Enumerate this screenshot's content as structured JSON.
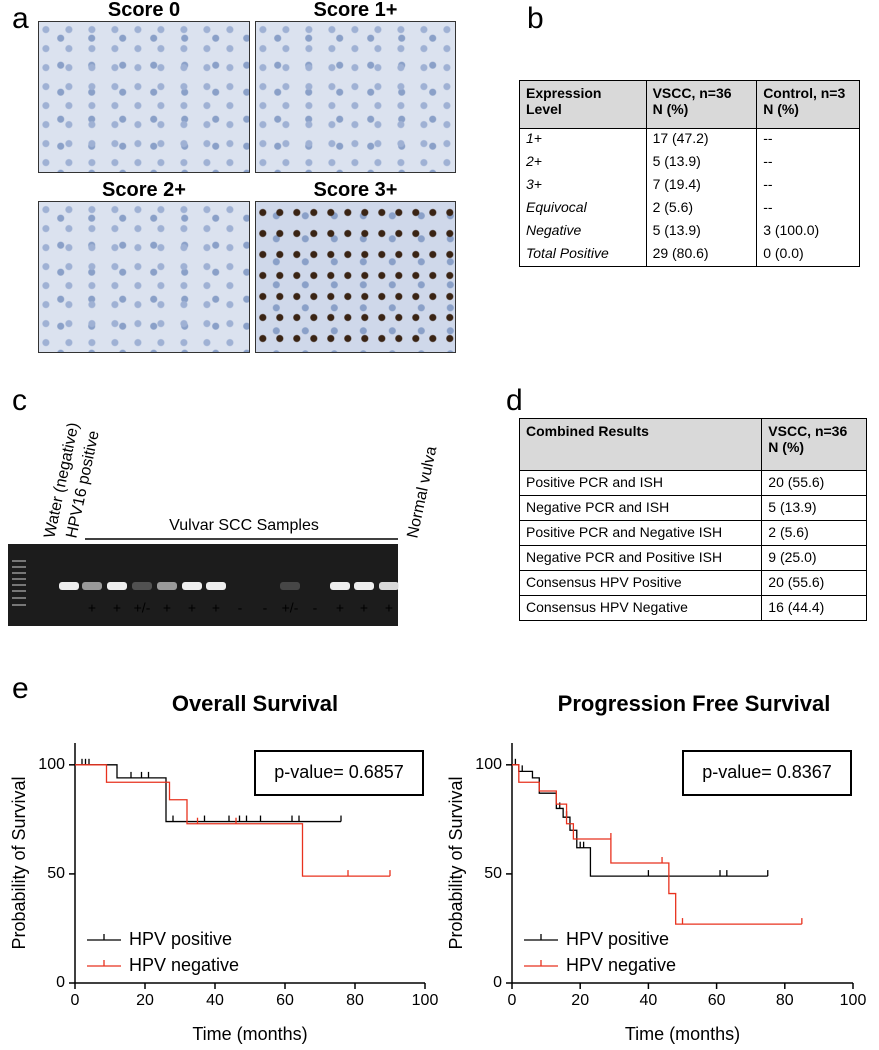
{
  "panel_labels": [
    "a",
    "b",
    "c",
    "d",
    "e"
  ],
  "panel_a": {
    "images": [
      {
        "title": "Score 0"
      },
      {
        "title": "Score 1+"
      },
      {
        "title": "Score 2+"
      },
      {
        "title": "Score 3+"
      }
    ]
  },
  "panel_b": {
    "table": {
      "header": [
        [
          "Expression",
          "Level"
        ],
        [
          "VSCC, n=36",
          "N (%)"
        ],
        [
          "Control, n=3",
          "N (%)"
        ]
      ],
      "rows": [
        [
          "1+",
          "17 (47.2)",
          "--"
        ],
        [
          "2+",
          "5 (13.9)",
          "--"
        ],
        [
          "3+",
          "7 (19.4)",
          "--"
        ],
        [
          "Equivocal",
          "2 (5.6)",
          "--"
        ],
        [
          "Negative",
          "5 (13.9)",
          "3 (100.0)"
        ],
        [
          "Total Positive",
          "29 (80.6)",
          "0 (0.0)"
        ]
      ]
    }
  },
  "panel_c": {
    "lane_labels": [
      "Water (negative)",
      "HPV16 positive",
      "Normal vulva"
    ],
    "group_label": "Vulvar SCC Samples",
    "calls": [
      "+",
      "+",
      "+/-",
      "+",
      "+",
      "+",
      "-",
      "-",
      "+/-",
      "-",
      "+",
      "+",
      "+"
    ]
  },
  "panel_d": {
    "table": {
      "header": [
        [
          "Combined Results"
        ],
        [
          "VSCC, n=36",
          "N (%)"
        ]
      ],
      "rows": [
        [
          "Positive PCR and ISH",
          "20 (55.6)"
        ],
        [
          "Negative PCR and ISH",
          "5 (13.9)"
        ],
        [
          "Positive PCR and Negative ISH",
          "2 (5.6)"
        ],
        [
          "Negative PCR and Positive ISH",
          "9 (25.0)"
        ],
        [
          "Consensus HPV Positive",
          "20 (55.6)"
        ],
        [
          "Consensus HPV Negative",
          "16 (44.4)"
        ]
      ]
    }
  },
  "chart_data": [
    {
      "type": "km",
      "title": "Overall Survival",
      "x_label": "Time (months)",
      "y_label": "Probability of Survival",
      "annotation": "p-value= 0.6857",
      "legend": "lower left",
      "xlim": [
        0,
        100
      ],
      "xticks": [
        0,
        20,
        40,
        60,
        80,
        100
      ],
      "ylim": [
        0,
        110
      ],
      "yticks": [
        0,
        50,
        100
      ],
      "series": [
        {
          "name": "HPV positive",
          "color": "#000000",
          "x": [
            0,
            12,
            12,
            26,
            26,
            76
          ],
          "values": [
            100,
            100,
            94,
            94,
            74,
            74
          ],
          "censor_x": [
            2,
            3,
            4,
            16,
            19,
            21,
            28,
            37,
            44,
            47,
            49,
            53,
            62,
            64,
            76
          ],
          "censor_y": [
            100,
            100,
            100,
            94,
            94,
            94,
            74,
            74,
            74,
            74,
            74,
            74,
            74,
            74,
            74
          ]
        },
        {
          "name": "HPV negative",
          "color": "#e8321e",
          "x": [
            0,
            9,
            9,
            27,
            27,
            32,
            32,
            65,
            65,
            90
          ],
          "values": [
            100,
            100,
            92,
            92,
            84,
            84,
            73,
            73,
            49,
            49
          ],
          "censor_x": [
            35,
            46,
            78,
            90
          ],
          "censor_y": [
            73,
            73,
            49,
            49
          ]
        }
      ]
    },
    {
      "type": "km",
      "title": "Progression Free Survival",
      "x_label": "Time (months)",
      "y_label": "Probability of Survival",
      "annotation": "p-value= 0.8367",
      "legend": "lower left",
      "xlim": [
        0,
        100
      ],
      "xticks": [
        0,
        20,
        40,
        60,
        80,
        100
      ],
      "ylim": [
        0,
        110
      ],
      "yticks": [
        0,
        50,
        100
      ],
      "series": [
        {
          "name": "HPV positive",
          "color": "#000000",
          "x": [
            0,
            2,
            2,
            6,
            6,
            8,
            8,
            13,
            13,
            15,
            15,
            17,
            17,
            19,
            19,
            23,
            23,
            75
          ],
          "values": [
            100,
            100,
            97,
            97,
            94,
            94,
            87,
            87,
            80,
            80,
            76,
            76,
            70,
            70,
            62,
            62,
            49,
            49
          ],
          "censor_x": [
            1,
            3,
            14,
            16,
            20,
            21,
            40,
            61,
            63,
            75
          ],
          "censor_y": [
            100,
            97,
            80,
            76,
            62,
            62,
            49,
            49,
            49,
            49
          ]
        },
        {
          "name": "HPV negative",
          "color": "#e8321e",
          "x": [
            0,
            2,
            2,
            8,
            8,
            13,
            13,
            16,
            16,
            18,
            18,
            29,
            29,
            46,
            46,
            48,
            48,
            85
          ],
          "values": [
            100,
            100,
            92,
            92,
            88,
            88,
            82,
            82,
            73,
            73,
            66,
            66,
            55,
            55,
            41,
            41,
            27,
            27
          ],
          "censor_x": [
            29,
            44,
            50,
            85
          ],
          "censor_y": [
            66,
            55,
            27,
            27
          ]
        }
      ]
    }
  ]
}
